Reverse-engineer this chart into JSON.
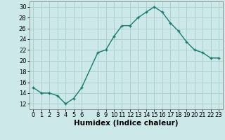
{
  "x": [
    0,
    1,
    2,
    3,
    4,
    5,
    6,
    8,
    9,
    10,
    11,
    12,
    13,
    14,
    15,
    16,
    17,
    18,
    19,
    20,
    21,
    22,
    23
  ],
  "y": [
    15,
    14,
    14,
    13.5,
    12,
    13,
    15,
    21.5,
    22,
    24.5,
    26.5,
    26.5,
    28,
    29,
    30,
    29,
    27,
    25.5,
    23.5,
    22,
    21.5,
    20.5,
    20.5
  ],
  "line_color": "#1a7a6e",
  "marker": "+",
  "marker_color": "#1a7a6e",
  "bg_color": "#cce8e8",
  "grid_color": "#aacccc",
  "xlabel": "Humidex (Indice chaleur)",
  "ylim": [
    11,
    31
  ],
  "xlim": [
    -0.5,
    23.5
  ],
  "yticks": [
    12,
    14,
    16,
    18,
    20,
    22,
    24,
    26,
    28,
    30
  ],
  "xticks": [
    0,
    1,
    2,
    3,
    4,
    5,
    6,
    8,
    9,
    10,
    11,
    12,
    13,
    14,
    15,
    16,
    17,
    18,
    19,
    20,
    21,
    22,
    23
  ],
  "xlabel_fontsize": 7.5,
  "tick_fontsize": 6,
  "line_width": 1.0,
  "marker_size": 3.5
}
